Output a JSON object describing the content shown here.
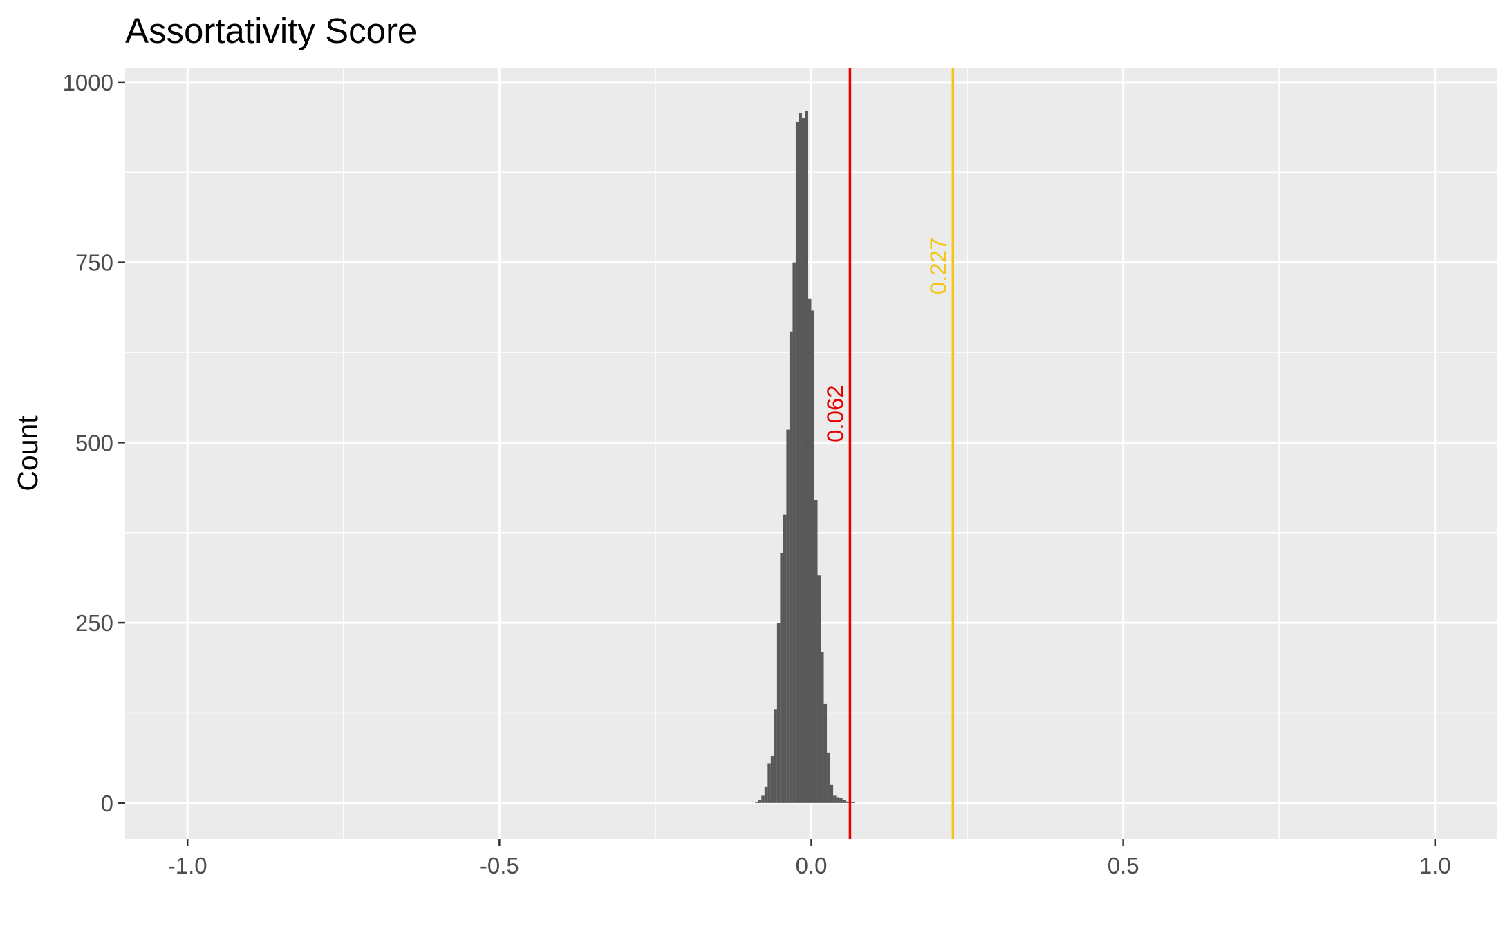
{
  "chart_data": {
    "type": "histogram",
    "title": "Assortativity Score",
    "xlabel": "",
    "ylabel": "Count",
    "xlim": [
      -1.1,
      1.1
    ],
    "ylim": [
      -50,
      1020
    ],
    "x_ticks": [
      {
        "value": -1.0,
        "label": "-1.0"
      },
      {
        "value": -0.5,
        "label": "-0.5"
      },
      {
        "value": 0.0,
        "label": "0.0"
      },
      {
        "value": 0.5,
        "label": "0.5"
      },
      {
        "value": 1.0,
        "label": "1.0"
      }
    ],
    "x_minor_ticks": [
      -0.75,
      -0.25,
      0.25,
      0.75
    ],
    "y_ticks": [
      {
        "value": 0,
        "label": "0"
      },
      {
        "value": 250,
        "label": "250"
      },
      {
        "value": 500,
        "label": "500"
      },
      {
        "value": 750,
        "label": "750"
      },
      {
        "value": 1000,
        "label": "1000"
      }
    ],
    "y_minor_ticks": [
      125,
      375,
      625,
      875
    ],
    "grid": true,
    "bar_color": "#595959",
    "bin_width": 0.005,
    "bins": [
      {
        "x0": -0.09,
        "count": 1
      },
      {
        "x0": -0.085,
        "count": 4
      },
      {
        "x0": -0.08,
        "count": 10
      },
      {
        "x0": -0.075,
        "count": 22
      },
      {
        "x0": -0.07,
        "count": 55
      },
      {
        "x0": -0.065,
        "count": 65
      },
      {
        "x0": -0.06,
        "count": 130
      },
      {
        "x0": -0.055,
        "count": 250
      },
      {
        "x0": -0.05,
        "count": 347
      },
      {
        "x0": -0.045,
        "count": 400
      },
      {
        "x0": -0.04,
        "count": 518
      },
      {
        "x0": -0.035,
        "count": 654
      },
      {
        "x0": -0.03,
        "count": 750
      },
      {
        "x0": -0.025,
        "count": 945
      },
      {
        "x0": -0.02,
        "count": 957
      },
      {
        "x0": -0.015,
        "count": 950
      },
      {
        "x0": -0.01,
        "count": 960
      },
      {
        "x0": -0.005,
        "count": 700
      },
      {
        "x0": 0.0,
        "count": 683
      },
      {
        "x0": 0.005,
        "count": 420
      },
      {
        "x0": 0.01,
        "count": 316
      },
      {
        "x0": 0.015,
        "count": 209
      },
      {
        "x0": 0.02,
        "count": 138
      },
      {
        "x0": 0.025,
        "count": 70
      },
      {
        "x0": 0.03,
        "count": 25
      },
      {
        "x0": 0.035,
        "count": 10
      },
      {
        "x0": 0.04,
        "count": 8
      },
      {
        "x0": 0.045,
        "count": 7
      },
      {
        "x0": 0.05,
        "count": 4
      },
      {
        "x0": 0.055,
        "count": 2
      },
      {
        "x0": 0.06,
        "count": 1
      },
      {
        "x0": 0.065,
        "count": 1
      }
    ],
    "reference_lines": [
      {
        "value": 0.062,
        "label": "0.062",
        "color": "#e60000",
        "label_y": 540
      },
      {
        "value": 0.227,
        "label": "0.227",
        "color": "#f5c518",
        "label_y": 745
      }
    ]
  }
}
